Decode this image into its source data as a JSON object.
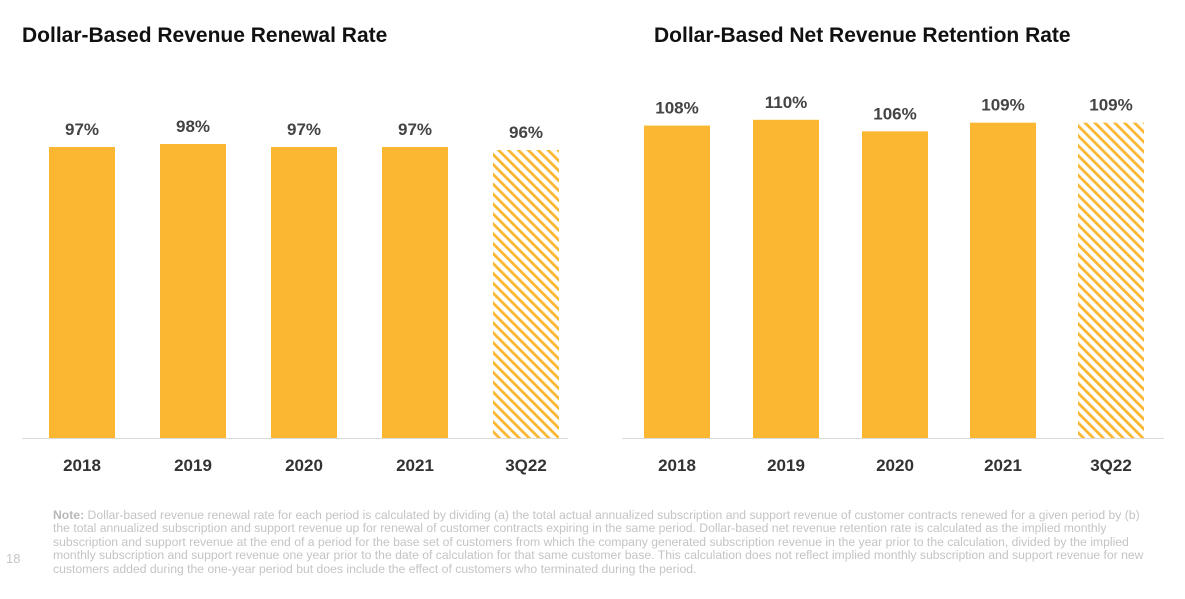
{
  "chart_data": [
    {
      "type": "bar",
      "title": "Dollar-Based Revenue Renewal Rate",
      "categories": [
        "2018",
        "2019",
        "2020",
        "2021",
        "3Q22"
      ],
      "values": [
        97,
        98,
        97,
        97,
        96
      ],
      "data_labels": [
        "97%",
        "98%",
        "97%",
        "97%",
        "96%"
      ],
      "hatched": [
        false,
        false,
        false,
        false,
        true
      ],
      "ylim": [
        0,
        100
      ],
      "grid": false,
      "bar_color": "#FBB731"
    },
    {
      "type": "bar",
      "title": "Dollar-Based Net Revenue Retention Rate",
      "categories": [
        "2018",
        "2019",
        "2020",
        "2021",
        "3Q22"
      ],
      "values": [
        108,
        110,
        106,
        109,
        109
      ],
      "data_labels": [
        "108%",
        "110%",
        "106%",
        "109%",
        "109%"
      ],
      "hatched": [
        false,
        false,
        false,
        false,
        true
      ],
      "ylim": [
        0,
        112
      ],
      "grid": false,
      "bar_color": "#FBB731"
    }
  ],
  "note": {
    "label": "Note:",
    "text": "Dollar-based revenue renewal rate for each period is calculated by dividing (a) the total actual annualized subscription and support revenue of customer contracts renewed for a given period by (b) the total annualized subscription and support revenue up for renewal of customer contracts expiring in the same period. Dollar-based net revenue retention rate is calculated as the implied monthly subscription and support revenue at the end of a period for the base set of customers from which the company generated subscription revenue in the year prior to the calculation, divided by the implied monthly subscription and support revenue one year prior to the date of calculation for that same customer base. This calculation does not reflect implied monthly subscription and support revenue for new customers added during the one-year period but does include the effect of customers who terminated during the period."
  },
  "page_number": "18"
}
